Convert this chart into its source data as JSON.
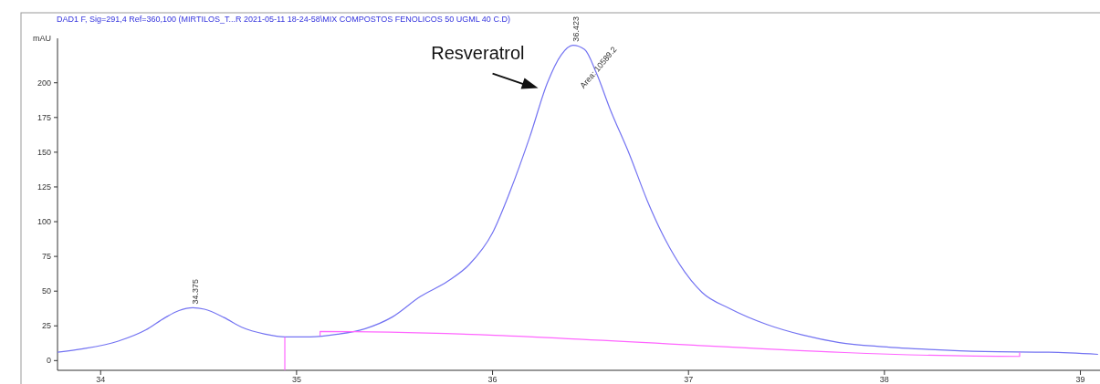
{
  "chart_data": {
    "type": "line",
    "title": "DAD1 F, Sig=291,4 Ref=360,100 (MIRTILOS_T...R 2021-05-11 18-24-58\\MIX COMPOSTOS FENOLICOS 50 UGML 40 C.D)",
    "ylabel": "mAU",
    "xlim": [
      33.78,
      39.1
    ],
    "ylim": [
      -7,
      232
    ],
    "xticks": [
      34,
      35,
      36,
      37,
      38,
      39
    ],
    "yticks": [
      0,
      25,
      50,
      75,
      100,
      125,
      150,
      175,
      200
    ],
    "grid": false,
    "line_style": "solid",
    "series": [
      {
        "color": "#7373f2",
        "x": [
          33.78,
          33.91,
          34.09,
          34.23,
          34.33,
          34.4,
          34.47,
          34.53,
          34.63,
          34.72,
          34.84,
          34.94,
          35.07,
          35.21,
          35.35,
          35.49,
          35.63,
          35.77,
          35.88,
          36.0,
          36.09,
          36.19,
          36.28,
          36.35,
          36.41,
          36.47,
          36.53,
          36.6,
          36.7,
          36.79,
          36.88,
          36.98,
          37.07,
          37.21,
          37.4,
          37.58,
          37.77,
          37.99,
          38.23,
          38.51,
          38.84,
          39.09
        ],
        "values": [
          6,
          8.5,
          14,
          22,
          31,
          36,
          38,
          37,
          31,
          24,
          19,
          17,
          17,
          19,
          23,
          31.5,
          46,
          57,
          69,
          92,
          122,
          161,
          200,
          220,
          227,
          224,
          207,
          181,
          148,
          115,
          87.5,
          64,
          49,
          37.5,
          26,
          18.5,
          13,
          10,
          8,
          6.5,
          6,
          4.5
        ]
      },
      {
        "color": "#ff66ff",
        "x": [
          34.94,
          34.94
        ],
        "values": [
          17,
          -7
        ]
      },
      {
        "color": "#ff66ff",
        "x": [
          35.12,
          35.12,
          38.69,
          38.69
        ],
        "values": [
          18,
          21,
          3,
          6
        ]
      }
    ],
    "annotations": [
      {
        "text": "34.375",
        "x": 34.47,
        "y": 38
      },
      {
        "text": "36.423",
        "x": 36.41,
        "y": 227
      },
      "Area: 10589.2",
      "Resveratrol"
    ]
  }
}
